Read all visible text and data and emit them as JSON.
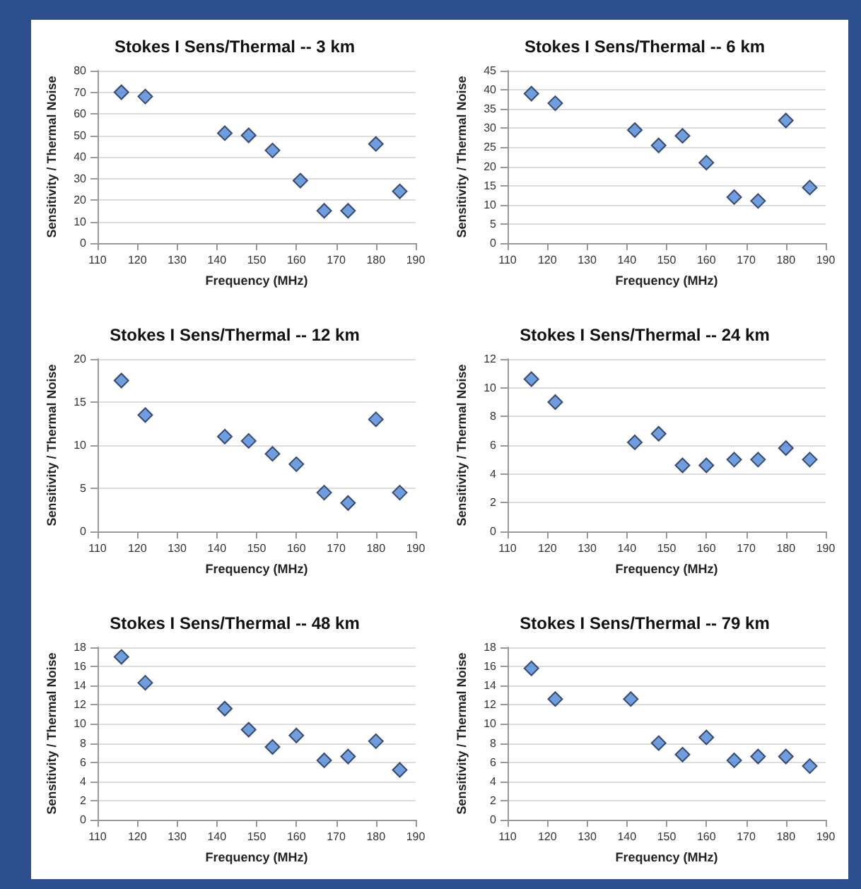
{
  "chart_data": [
    {
      "type": "scatter",
      "title": "Stokes I Sens/Thermal -- 3 km",
      "xlabel": "Frequency (MHz)",
      "ylabel": "Sensitivity / Thermal Noise",
      "marker": "diamond",
      "grid": "y",
      "xlim": [
        110,
        190
      ],
      "xticks": [
        110,
        120,
        130,
        140,
        150,
        160,
        170,
        180,
        190
      ],
      "ylim": [
        0,
        80
      ],
      "yticks": [
        0,
        10,
        20,
        30,
        40,
        50,
        60,
        70,
        80
      ],
      "x": [
        116,
        122,
        142,
        148,
        154,
        161,
        167,
        173,
        180,
        186
      ],
      "series": [
        {
          "color": "#4a86d8",
          "values": [
            70,
            68,
            51,
            50,
            43,
            29,
            15,
            15,
            46,
            24
          ]
        }
      ]
    },
    {
      "type": "scatter",
      "title": "Stokes I Sens/Thermal -- 6 km",
      "xlabel": "Frequency (MHz)",
      "ylabel": "Sensitivity / Thermal Noise",
      "marker": "diamond",
      "grid": "y",
      "xlim": [
        110,
        190
      ],
      "xticks": [
        110,
        120,
        130,
        140,
        150,
        160,
        170,
        180,
        190
      ],
      "ylim": [
        0,
        45
      ],
      "yticks": [
        0,
        5,
        10,
        15,
        20,
        25,
        30,
        35,
        40,
        45
      ],
      "x": [
        116,
        122,
        142,
        148,
        154,
        160,
        167,
        173,
        180,
        186
      ],
      "series": [
        {
          "color": "#4a86d8",
          "values": [
            39,
            36.5,
            29.5,
            25.5,
            28,
            21,
            12,
            11,
            32,
            14.5
          ]
        }
      ]
    },
    {
      "type": "scatter",
      "title": "Stokes I Sens/Thermal -- 12 km",
      "xlabel": "Frequency (MHz)",
      "ylabel": "Sensitivity / Thermal Noise",
      "marker": "diamond",
      "grid": "y",
      "xlim": [
        110,
        190
      ],
      "xticks": [
        110,
        120,
        130,
        140,
        150,
        160,
        170,
        180,
        190
      ],
      "ylim": [
        0,
        20
      ],
      "yticks": [
        0,
        5,
        10,
        15,
        20
      ],
      "x": [
        116,
        122,
        142,
        148,
        154,
        160,
        167,
        173,
        180,
        186
      ],
      "series": [
        {
          "color": "#4a86d8",
          "values": [
            17.5,
            13.5,
            11,
            10.5,
            9,
            7.8,
            4.5,
            3.3,
            13,
            4.5
          ]
        }
      ]
    },
    {
      "type": "scatter",
      "title": "Stokes I Sens/Thermal -- 24 km",
      "xlabel": "Frequency (MHz)",
      "ylabel": "Sensitivity / Thermal Noise",
      "marker": "diamond",
      "grid": "y",
      "xlim": [
        110,
        190
      ],
      "xticks": [
        110,
        120,
        130,
        140,
        150,
        160,
        170,
        180,
        190
      ],
      "ylim": [
        0,
        12
      ],
      "yticks": [
        0,
        2,
        4,
        6,
        8,
        10,
        12
      ],
      "x": [
        116,
        122,
        142,
        148,
        154,
        160,
        167,
        173,
        180,
        186
      ],
      "series": [
        {
          "color": "#4a86d8",
          "values": [
            10.6,
            9,
            6.2,
            6.8,
            4.6,
            4.6,
            5,
            5,
            5.8,
            5
          ]
        }
      ]
    },
    {
      "type": "scatter",
      "title": "Stokes I Sens/Thermal -- 48 km",
      "xlabel": "Frequency (MHz)",
      "ylabel": "Sensitivity / Thermal Noise",
      "marker": "diamond",
      "grid": "y",
      "xlim": [
        110,
        190
      ],
      "xticks": [
        110,
        120,
        130,
        140,
        150,
        160,
        170,
        180,
        190
      ],
      "ylim": [
        0,
        18
      ],
      "yticks": [
        0,
        2,
        4,
        6,
        8,
        10,
        12,
        14,
        16,
        18
      ],
      "x": [
        116,
        122,
        142,
        148,
        154,
        160,
        167,
        173,
        180,
        186
      ],
      "series": [
        {
          "color": "#4a86d8",
          "values": [
            17,
            14.3,
            11.6,
            9.4,
            7.6,
            8.8,
            6.2,
            6.6,
            8.2,
            5.2
          ]
        }
      ]
    },
    {
      "type": "scatter",
      "title": "Stokes I Sens/Thermal -- 79 km",
      "xlabel": "Frequency (MHz)",
      "ylabel": "Sensitivity / Thermal Noise",
      "marker": "diamond",
      "grid": "y",
      "xlim": [
        110,
        190
      ],
      "xticks": [
        110,
        120,
        130,
        140,
        150,
        160,
        170,
        180,
        190
      ],
      "ylim": [
        0,
        18
      ],
      "yticks": [
        0,
        2,
        4,
        6,
        8,
        10,
        12,
        14,
        16,
        18
      ],
      "x": [
        116,
        122,
        141,
        148,
        154,
        160,
        167,
        173,
        180,
        186
      ],
      "series": [
        {
          "color": "#4a86d8",
          "values": [
            15.8,
            12.6,
            12.6,
            8,
            6.8,
            8.6,
            6.2,
            6.6,
            6.6,
            5.6
          ]
        }
      ]
    }
  ]
}
